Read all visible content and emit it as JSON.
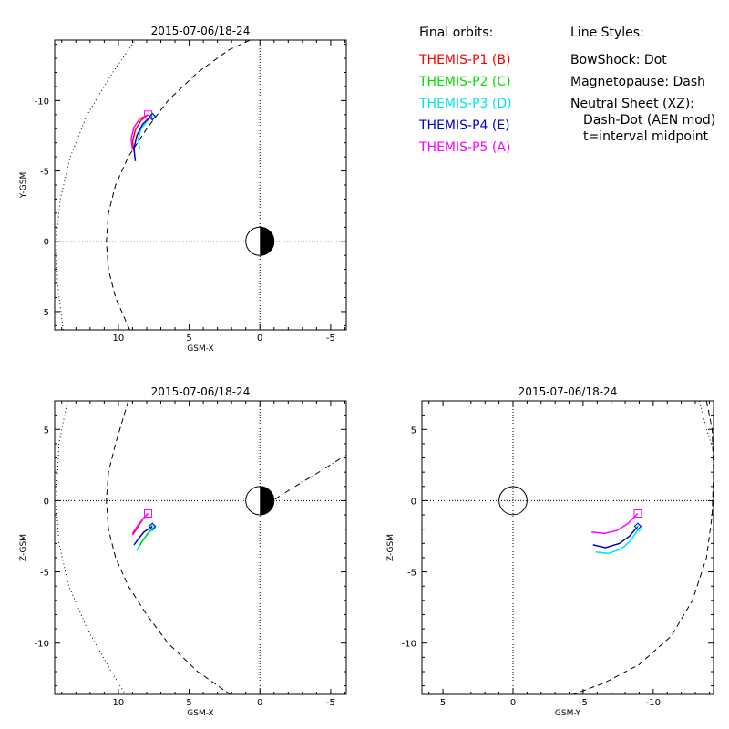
{
  "legend": {
    "orbits_title": "Final orbits:",
    "probes": [
      {
        "label": "THEMIS-P1 (B)",
        "color": "#ff0000"
      },
      {
        "label": "THEMIS-P2 (C)",
        "color": "#00e000"
      },
      {
        "label": "THEMIS-P3 (D)",
        "color": "#00e6e6"
      },
      {
        "label": "THEMIS-P4 (E)",
        "color": "#0000cc"
      },
      {
        "label": "THEMIS-P5 (A)",
        "color": "#ff00ff"
      }
    ],
    "styles_title": "Line Styles:",
    "styles": [
      "BowShock: Dot",
      "Magnetopause: Dash",
      "Neutral Sheet (XZ):",
      "Dash-Dot (AEN mod)",
      "t=interval midpoint"
    ]
  },
  "chart_data": [
    {
      "type": "line",
      "title": "2015-07-06/18-24",
      "xlabel": "GSM-X",
      "ylabel": "Y-GSM",
      "xlim": [
        14.5,
        -6.1
      ],
      "ylim": [
        6.3,
        -14.3
      ],
      "xticks": [
        10,
        5,
        0,
        -5
      ],
      "xtick_labels": [
        "10",
        "5",
        "0",
        "-5"
      ],
      "yticks": [
        5,
        0,
        -5,
        -10
      ],
      "ytick_labels": [
        "5",
        "0",
        "-5",
        "-10"
      ],
      "earth": true,
      "curves": [
        {
          "name": "bowshock",
          "style": "dot",
          "points": [
            [
              13.9,
              6.3
            ],
            [
              14.3,
              3.0
            ],
            [
              14.4,
              0.0
            ],
            [
              14.1,
              -3.0
            ],
            [
              13.4,
              -6.0
            ],
            [
              12.2,
              -9.0
            ],
            [
              10.4,
              -12.0
            ],
            [
              8.8,
              -14.3
            ]
          ]
        },
        {
          "name": "magnetopause",
          "style": "dash",
          "points": [
            [
              9.2,
              6.3
            ],
            [
              10.2,
              4.0
            ],
            [
              10.7,
              2.0
            ],
            [
              10.85,
              0.0
            ],
            [
              10.7,
              -2.0
            ],
            [
              10.2,
              -4.0
            ],
            [
              9.3,
              -6.0
            ],
            [
              8.0,
              -8.0
            ],
            [
              6.5,
              -10.0
            ],
            [
              4.4,
              -12.0
            ],
            [
              2.2,
              -13.6
            ],
            [
              0.7,
              -14.3
            ]
          ]
        }
      ],
      "series": [
        {
          "probe": "THEMIS-P1 (B)",
          "color": "#ff0000",
          "points": [
            [
              8.9,
              -6.4
            ],
            [
              9.0,
              -7.1
            ],
            [
              8.8,
              -7.9
            ],
            [
              8.4,
              -8.6
            ],
            [
              7.9,
              -9.0
            ]
          ]
        },
        {
          "probe": "THEMIS-P5 (A)",
          "color": "#ff00ff",
          "points": [
            [
              9.0,
              -6.5
            ],
            [
              9.1,
              -7.3
            ],
            [
              8.9,
              -8.1
            ],
            [
              8.5,
              -8.7
            ],
            [
              7.9,
              -9.0
            ]
          ]
        },
        {
          "probe": "THEMIS-P3 (D)",
          "color": "#00e6e6",
          "points": [
            [
              8.5,
              -6.6
            ],
            [
              8.6,
              -7.3
            ],
            [
              8.4,
              -8.0
            ],
            [
              8.0,
              -8.5
            ],
            [
              7.6,
              -8.9
            ]
          ]
        },
        {
          "probe": "THEMIS-P4 (E)",
          "color": "#0000cc",
          "points": [
            [
              8.8,
              -5.7
            ],
            [
              8.9,
              -6.6
            ],
            [
              8.7,
              -7.5
            ],
            [
              8.3,
              -8.3
            ],
            [
              7.7,
              -8.9
            ]
          ]
        }
      ],
      "markers": [
        {
          "shape": "square",
          "color": "#ff00ff",
          "x": 7.9,
          "y": -9.0
        },
        {
          "shape": "diamond",
          "color": "#00e6e6",
          "x": 7.6,
          "y": -8.9
        },
        {
          "shape": "diamond",
          "color": "#0000cc",
          "x": 7.6,
          "y": -8.85
        }
      ]
    },
    {
      "type": "line",
      "title": "2015-07-06/18-24",
      "xlabel": "GSM-X",
      "ylabel": "Z-GSM",
      "xlim": [
        14.5,
        -6.1
      ],
      "ylim": [
        -13.6,
        7.0
      ],
      "xticks": [
        10,
        5,
        0,
        -5
      ],
      "xtick_labels": [
        "10",
        "5",
        "0",
        "-5"
      ],
      "yticks": [
        5,
        0,
        -5,
        -10
      ],
      "ytick_labels": [
        "5",
        "0",
        "-5",
        "-10"
      ],
      "earth": true,
      "curves": [
        {
          "name": "bowshock",
          "style": "dot",
          "points": [
            [
              13.6,
              7.0
            ],
            [
              14.2,
              4.0
            ],
            [
              14.4,
              0.0
            ],
            [
              14.2,
              -3.0
            ],
            [
              13.5,
              -6.0
            ],
            [
              12.2,
              -9.0
            ],
            [
              10.5,
              -12.0
            ],
            [
              9.5,
              -13.6
            ]
          ]
        },
        {
          "name": "magnetopause",
          "style": "dash",
          "points": [
            [
              9.3,
              7.0
            ],
            [
              10.2,
              4.0
            ],
            [
              10.7,
              2.0
            ],
            [
              10.85,
              0.0
            ],
            [
              10.7,
              -2.0
            ],
            [
              10.2,
              -4.0
            ],
            [
              9.3,
              -6.0
            ],
            [
              8.0,
              -8.0
            ],
            [
              6.5,
              -10.0
            ],
            [
              4.4,
              -12.0
            ],
            [
              2.1,
              -13.6
            ]
          ]
        },
        {
          "name": "neutral-sheet",
          "style": "dashdot",
          "points": [
            [
              -0.4,
              -0.4
            ],
            [
              -1.5,
              0.4
            ],
            [
              -3.0,
              1.3
            ],
            [
              -4.5,
              2.2
            ],
            [
              -5.6,
              2.9
            ],
            [
              -6.1,
              3.2
            ]
          ]
        }
      ],
      "series": [
        {
          "probe": "THEMIS-P1 (B)",
          "color": "#ff0000",
          "points": [
            [
              9.0,
              -2.4
            ],
            [
              8.6,
              -1.8
            ],
            [
              8.2,
              -1.2
            ],
            [
              7.9,
              -0.9
            ]
          ]
        },
        {
          "probe": "THEMIS-P5 (A)",
          "color": "#ff00ff",
          "points": [
            [
              9.0,
              -2.3
            ],
            [
              8.6,
              -1.7
            ],
            [
              8.2,
              -1.2
            ],
            [
              7.9,
              -0.9
            ]
          ]
        },
        {
          "probe": "THEMIS-P3 (D)",
          "color": "#00e6e6",
          "points": [
            [
              8.7,
              -3.5
            ],
            [
              8.4,
              -3.0
            ],
            [
              8.0,
              -2.4
            ],
            [
              7.6,
              -1.9
            ]
          ]
        },
        {
          "probe": "THEMIS-P4 (E)",
          "color": "#0000cc",
          "points": [
            [
              8.9,
              -3.1
            ],
            [
              8.6,
              -2.7
            ],
            [
              8.2,
              -2.2
            ],
            [
              7.6,
              -1.8
            ]
          ]
        },
        {
          "probe": "THEMIS-P2 (C)",
          "color": "#00e000",
          "points": [
            [
              8.6,
              -3.3
            ],
            [
              8.3,
              -2.8
            ],
            [
              7.9,
              -2.3
            ],
            [
              7.5,
              -1.9
            ]
          ]
        }
      ],
      "markers": [
        {
          "shape": "square",
          "color": "#ff00ff",
          "x": 7.9,
          "y": -0.9
        },
        {
          "shape": "diamond",
          "color": "#00e6e6",
          "x": 7.6,
          "y": -1.9
        },
        {
          "shape": "diamond",
          "color": "#0000cc",
          "x": 7.6,
          "y": -1.8
        }
      ]
    },
    {
      "type": "line",
      "title": "2015-07-06/18-24",
      "xlabel": "GSM-Y",
      "ylabel": "Z-GSM",
      "xlim": [
        6.5,
        -14.3
      ],
      "ylim": [
        -13.6,
        7.0
      ],
      "xticks": [
        5,
        0,
        -5,
        -10
      ],
      "xtick_labels": [
        "5",
        "0",
        "-5",
        "-10"
      ],
      "yticks": [
        5,
        0,
        -5,
        -10
      ],
      "ytick_labels": [
        "5",
        "0",
        "-5",
        "-10"
      ],
      "earth": false,
      "curves": [
        {
          "name": "bowshock",
          "style": "dot",
          "points": [
            [
              -13.3,
              7.0
            ],
            [
              -13.8,
              5.0
            ],
            [
              -14.3,
              3.5
            ]
          ]
        },
        {
          "name": "magnetopause",
          "style": "dash",
          "points": [
            [
              -13.8,
              7.0
            ],
            [
              -14.2,
              5.0
            ],
            [
              -14.3,
              2.0
            ],
            [
              -14.2,
              -1.0
            ],
            [
              -13.8,
              -4.0
            ],
            [
              -12.8,
              -7.0
            ],
            [
              -11.3,
              -9.5
            ],
            [
              -9.0,
              -11.5
            ],
            [
              -6.5,
              -12.8
            ],
            [
              -4.3,
              -13.6
            ]
          ]
        }
      ],
      "series": [
        {
          "probe": "THEMIS-P5 (A)",
          "color": "#ff00ff",
          "points": [
            [
              -5.6,
              -2.2
            ],
            [
              -6.5,
              -2.3
            ],
            [
              -7.4,
              -2.1
            ],
            [
              -8.2,
              -1.6
            ],
            [
              -8.9,
              -0.9
            ]
          ]
        },
        {
          "probe": "THEMIS-P3 (D)",
          "color": "#00e6e6",
          "points": [
            [
              -5.9,
              -3.6
            ],
            [
              -6.8,
              -3.7
            ],
            [
              -7.7,
              -3.4
            ],
            [
              -8.4,
              -2.8
            ],
            [
              -9.0,
              -1.9
            ]
          ]
        },
        {
          "probe": "THEMIS-P4 (E)",
          "color": "#0000cc",
          "points": [
            [
              -5.7,
              -3.1
            ],
            [
              -6.6,
              -3.3
            ],
            [
              -7.6,
              -3.0
            ],
            [
              -8.3,
              -2.5
            ],
            [
              -8.9,
              -1.8
            ]
          ]
        }
      ],
      "markers": [
        {
          "shape": "square",
          "color": "#ff00ff",
          "x": -8.9,
          "y": -0.9
        },
        {
          "shape": "diamond",
          "color": "#00e6e6",
          "x": -9.0,
          "y": -1.9
        },
        {
          "shape": "diamond",
          "color": "#0000cc",
          "x": -8.9,
          "y": -1.8
        }
      ],
      "circle": {
        "x": 0,
        "y": 0,
        "r": 1
      }
    }
  ]
}
